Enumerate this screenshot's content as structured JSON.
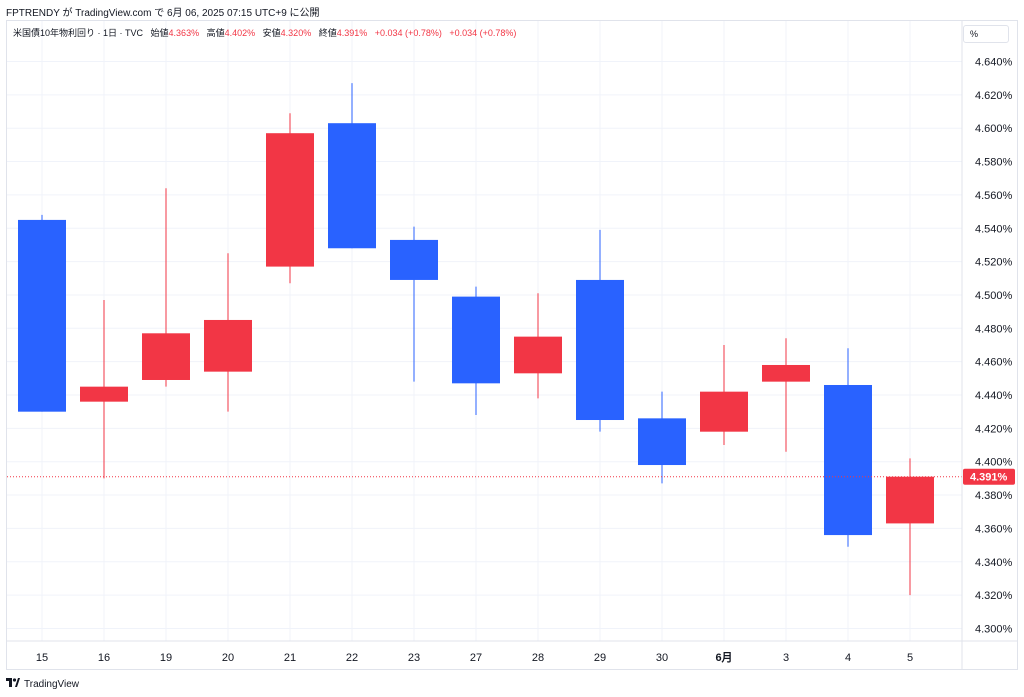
{
  "publisher_line": "FPTRENDY が TradingView.com で 6月 06, 2025 07:15 UTC+9 に公開",
  "legend": {
    "symbol": "米国債10年物利回り · 1日 · TVC",
    "open_label": "始値",
    "open_value": "4.363%",
    "high_label": "高値",
    "high_value": "4.402%",
    "low_label": "安値",
    "low_value": "4.320%",
    "close_label": "終値",
    "close_value": "4.391%",
    "change1": "+0.034 (+0.78%)",
    "change2": "+0.034 (+0.78%)"
  },
  "unit_button": "%",
  "footer": {
    "logo_icon": "tradingview-logo-icon",
    "brand": "TradingView"
  },
  "colors": {
    "up": "#f23645",
    "down": "#2962ff",
    "grid": "#f0f3fa",
    "last_price_line": "#f23645"
  },
  "chart_data": {
    "type": "candlestick",
    "x_labels": [
      "15",
      "16",
      "19",
      "20",
      "21",
      "22",
      "23",
      "27",
      "28",
      "29",
      "30",
      "6月",
      "3",
      "4",
      "5"
    ],
    "bold_labels": [
      "6月"
    ],
    "y_ticks": [
      "4.640%",
      "4.620%",
      "4.600%",
      "4.580%",
      "4.560%",
      "4.540%",
      "4.520%",
      "4.500%",
      "4.480%",
      "4.460%",
      "4.440%",
      "4.420%",
      "4.400%",
      "4.380%",
      "4.360%",
      "4.340%",
      "4.320%",
      "4.300%"
    ],
    "y_tick_values": [
      4.64,
      4.62,
      4.6,
      4.58,
      4.56,
      4.54,
      4.52,
      4.5,
      4.48,
      4.46,
      4.44,
      4.42,
      4.4,
      4.38,
      4.36,
      4.34,
      4.32,
      4.3
    ],
    "ylim": [
      4.29,
      4.65
    ],
    "last_price": 4.391,
    "last_price_label": "4.391%",
    "candles": [
      {
        "open": 4.545,
        "high": 4.548,
        "low": 4.43,
        "close": 4.43
      },
      {
        "open": 4.436,
        "high": 4.497,
        "low": 4.39,
        "close": 4.445
      },
      {
        "open": 4.449,
        "high": 4.564,
        "low": 4.445,
        "close": 4.477
      },
      {
        "open": 4.454,
        "high": 4.525,
        "low": 4.43,
        "close": 4.485
      },
      {
        "open": 4.517,
        "high": 4.609,
        "low": 4.507,
        "close": 4.597
      },
      {
        "open": 4.603,
        "high": 4.627,
        "low": 4.528,
        "close": 4.528
      },
      {
        "open": 4.533,
        "high": 4.541,
        "low": 4.448,
        "close": 4.509
      },
      {
        "open": 4.499,
        "high": 4.505,
        "low": 4.428,
        "close": 4.447
      },
      {
        "open": 4.453,
        "high": 4.501,
        "low": 4.438,
        "close": 4.475
      },
      {
        "open": 4.509,
        "high": 4.539,
        "low": 4.418,
        "close": 4.425
      },
      {
        "open": 4.426,
        "high": 4.442,
        "low": 4.387,
        "close": 4.398
      },
      {
        "open": 4.418,
        "high": 4.47,
        "low": 4.41,
        "close": 4.442
      },
      {
        "open": 4.448,
        "high": 4.474,
        "low": 4.406,
        "close": 4.458
      },
      {
        "open": 4.446,
        "high": 4.468,
        "low": 4.349,
        "close": 4.356
      },
      {
        "open": 4.363,
        "high": 4.402,
        "low": 4.32,
        "close": 4.391
      }
    ]
  }
}
